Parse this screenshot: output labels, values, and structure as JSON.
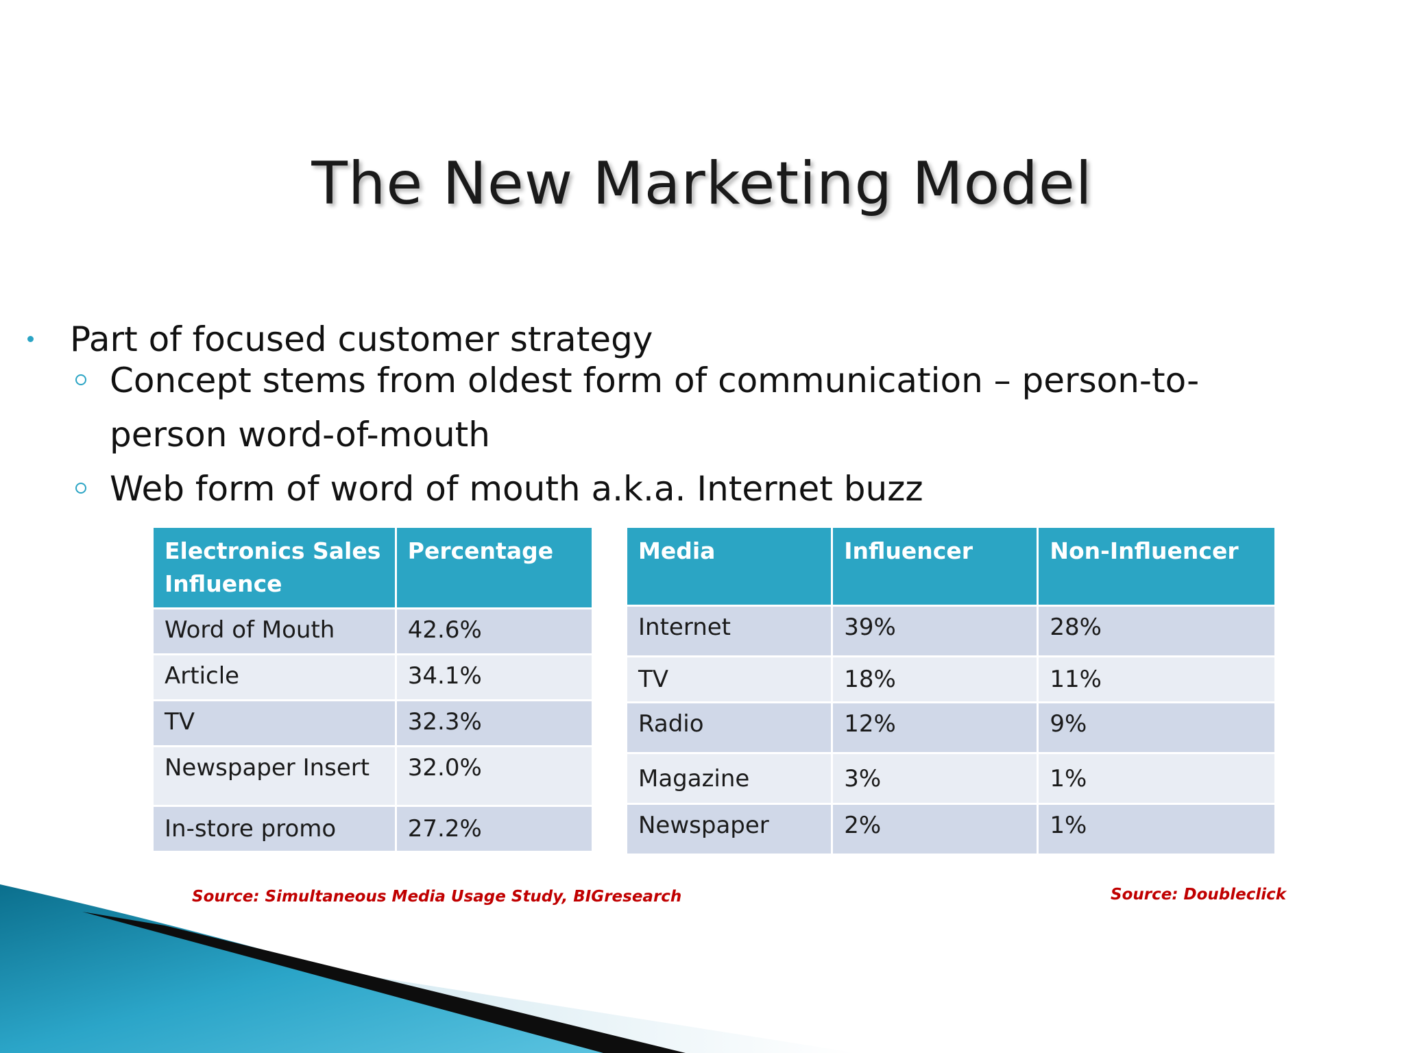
{
  "slide": {
    "title": "The New Marketing Model",
    "bullets": {
      "level1": "Part of focused customer strategy",
      "level2": [
        "Concept stems from oldest form of communication – person-to-person word-of-mouth",
        "Web form of word of mouth a.k.a. Internet buzz"
      ]
    }
  },
  "table_left": {
    "headers": [
      "Electronics Sales Influence",
      "Percentage"
    ],
    "rows": [
      [
        "Word of Mouth",
        "42.6%"
      ],
      [
        "Article",
        "34.1%"
      ],
      [
        "TV",
        "32.3%"
      ],
      [
        "Newspaper Insert",
        "32.0%"
      ],
      [
        "In-store promo",
        "27.2%"
      ]
    ],
    "source": "Source: Simultaneous Media Usage Study, BIGresearch"
  },
  "table_right": {
    "headers": [
      "Media",
      "Influencer",
      "Non-Influencer"
    ],
    "rows": [
      [
        "Internet",
        "39%",
        "28%"
      ],
      [
        "TV",
        "18%",
        "11%"
      ],
      [
        "Radio",
        "12%",
        "9%"
      ],
      [
        "Magazine",
        "3%",
        "1%"
      ],
      [
        "Newspaper",
        "2%",
        "1%"
      ]
    ],
    "source": "Source: Doubleclick"
  },
  "colors": {
    "header_fill": "#2ba5c4",
    "row_odd": "#d0d8e8",
    "row_even": "#e9edf4",
    "source_text": "#c00000",
    "bullet_accent": "#2aa4c4"
  }
}
